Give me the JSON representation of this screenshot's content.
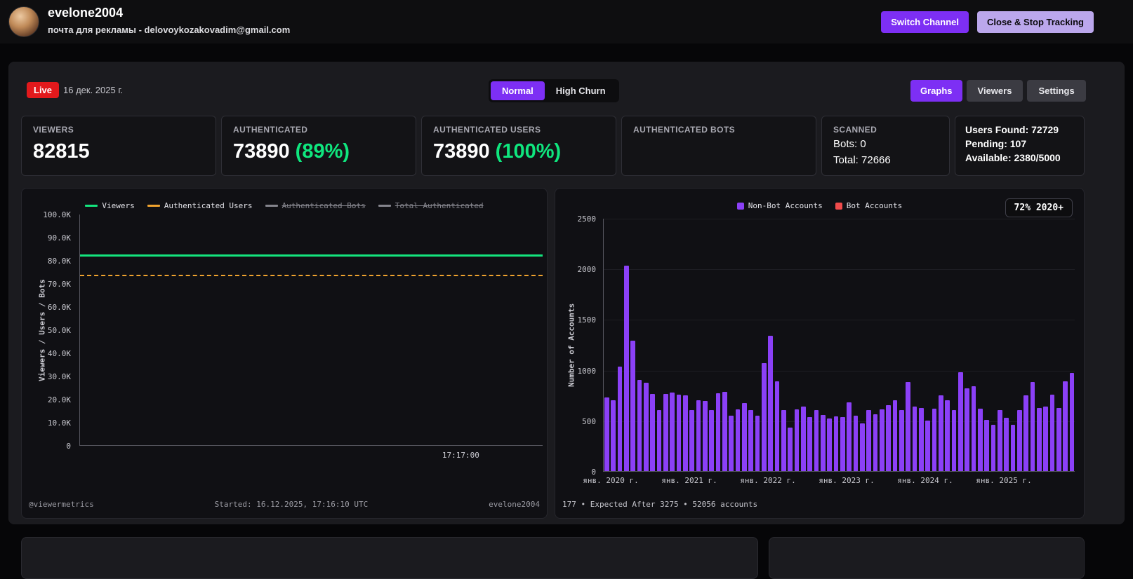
{
  "header": {
    "channel_name": "evelone2004",
    "channel_subtitle": "почта для рекламы - delovoykozakovadim@gmail.com",
    "switch_channel_label": "Switch Channel",
    "close_stop_label": "Close & Stop Tracking"
  },
  "toolbar": {
    "live_label": "Live",
    "date": "16 дек. 2025 г.",
    "mode_normal": "Normal",
    "mode_high_churn": "High Churn",
    "active_mode": "Normal",
    "view_buttons": [
      {
        "label": "Graphs",
        "active": true
      },
      {
        "label": "Viewers",
        "active": false
      },
      {
        "label": "Settings",
        "active": false
      }
    ]
  },
  "stats": {
    "viewers": {
      "label": "VIEWERS",
      "value": "82815"
    },
    "authenticated": {
      "label": "AUTHENTICATED",
      "value": "73890",
      "percent": "(89%)"
    },
    "authenticated_users": {
      "label": "AUTHENTICATED USERS",
      "value": "73890",
      "percent": "(100%)"
    },
    "authenticated_bots": {
      "label": "AUTHENTICATED BOTS",
      "value": ""
    },
    "scanned": {
      "label": "SCANNED",
      "bots_line": "Bots: 0",
      "total_line": "Total: 72666"
    },
    "summary": {
      "users_found_line": "Users Found: 72729",
      "pending_line": "Pending: 107",
      "available_line": "Available: 2380/5000"
    }
  },
  "accent_colors": {
    "purple": "#7d2ff4",
    "lavender": "#bba7ec",
    "live_red": "#e2191c",
    "green": "#0fe67e",
    "bar_purple": "#8b40f7",
    "bot_red": "#f04b4b",
    "orange": "#f0a32e"
  },
  "chart_data": [
    {
      "type": "line",
      "ylabel": "Viewers / Users / Bots",
      "ylim": [
        0,
        100000
      ],
      "y_ticks": [
        "100.0K",
        "90.0K",
        "80.0K",
        "70.0K",
        "60.0K",
        "50.0K",
        "40.0K",
        "30.0K",
        "20.0K",
        "10.0K",
        "0"
      ],
      "x_ticks": [
        "17:17:00"
      ],
      "grid": false,
      "legend_position": "top",
      "series": [
        {
          "name": "Viewers",
          "color": "#13e57e",
          "style": "solid",
          "value": 82815,
          "visible": true
        },
        {
          "name": "Authenticated Users",
          "color": "#f0a32e",
          "style": "dashed",
          "value": 73890,
          "visible": true
        },
        {
          "name": "Authenticated Bots",
          "color": "#8a5cf6",
          "style": "solid",
          "value": null,
          "visible": false
        },
        {
          "name": "Total Authenticated",
          "color": "#9a9aa3",
          "style": "solid",
          "value": null,
          "visible": false
        }
      ],
      "footer": {
        "left": "@viewermetrics",
        "center": "Started: 16.12.2025, 17:16:10 UTC",
        "right": "evelone2004"
      }
    },
    {
      "type": "bar",
      "ylabel": "Number of Accounts",
      "ylim": [
        0,
        2500
      ],
      "y_ticks": [
        2500,
        2000,
        1500,
        1000,
        500,
        0
      ],
      "x_ticks": [
        "янв. 2020 г.",
        "янв. 2021 г.",
        "янв. 2022 г.",
        "янв. 2023 г.",
        "янв. 2024 г.",
        "янв. 2025 г."
      ],
      "months_start": "2020-01",
      "grid": true,
      "legend_position": "top",
      "badge": "72% 2020+",
      "legend": [
        {
          "name": "Non-Bot Accounts",
          "color": "#8b40f7"
        },
        {
          "name": "Bot Accounts",
          "color": "#f04b4b"
        }
      ],
      "series": [
        {
          "name": "Non-Bot Accounts",
          "values": [
            730,
            700,
            1030,
            2030,
            1290,
            900,
            870,
            760,
            600,
            760,
            775,
            755,
            745,
            600,
            700,
            690,
            605,
            770,
            780,
            550,
            610,
            670,
            600,
            545,
            1070,
            1340,
            885,
            600,
            430,
            610,
            635,
            530,
            600,
            555,
            520,
            540,
            530,
            680,
            545,
            470,
            600,
            560,
            610,
            650,
            700,
            605,
            880,
            635,
            620,
            500,
            615,
            750,
            700,
            605,
            980,
            820,
            840,
            615,
            505,
            455,
            600,
            525,
            455,
            605,
            750,
            880,
            620,
            635,
            755,
            625,
            885,
            970
          ]
        },
        {
          "name": "Bot Accounts",
          "values": []
        }
      ],
      "footer": "177 • Expected After 3275 • 52056 accounts"
    }
  ]
}
